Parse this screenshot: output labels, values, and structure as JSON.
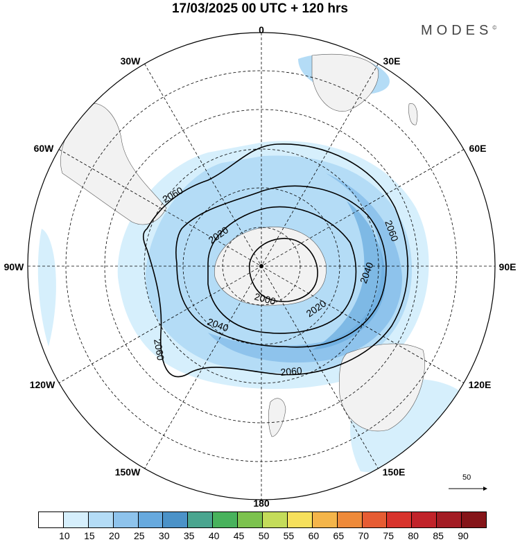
{
  "title": "17/03/2025  00 UTC  + 120 hrs",
  "brand": "MODES",
  "brand_mark": "©",
  "longitude_labels": {
    "lon_0": "0",
    "lon_30e": "30E",
    "lon_60e": "60E",
    "lon_90e": "90E",
    "lon_120e": "120E",
    "lon_150e": "150E",
    "lon_180": "180",
    "lon_150w": "150W",
    "lon_120w": "120W",
    "lon_90w": "90W",
    "lon_60w": "60W",
    "lon_30w": "30W"
  },
  "contour_labels": [
    "2060",
    "2020",
    "2060",
    "2040",
    "2000",
    "2020",
    "2040",
    "2060",
    "2060"
  ],
  "reference_vector_label": "50",
  "colorbar": {
    "ticks": [
      "10",
      "15",
      "20",
      "25",
      "30",
      "35",
      "40",
      "45",
      "50",
      "55",
      "60",
      "65",
      "70",
      "75",
      "80",
      "85",
      "90"
    ],
    "colors": [
      "#ffffff",
      "#d6effc",
      "#b4dcf6",
      "#8ec3ec",
      "#67a9de",
      "#4b92c8",
      "#4aa58f",
      "#48b25c",
      "#7cc24e",
      "#c4dc5a",
      "#f6e05c",
      "#f4b54a",
      "#ee8a3a",
      "#e65c33",
      "#d8332c",
      "#c1232a",
      "#a31c24",
      "#851519"
    ]
  },
  "colors": {
    "land": "#f2f2f2",
    "wind_light": "#cfe9fb",
    "wind_mid": "#a9d4f3",
    "wind_strong": "#7fb7e6"
  }
}
